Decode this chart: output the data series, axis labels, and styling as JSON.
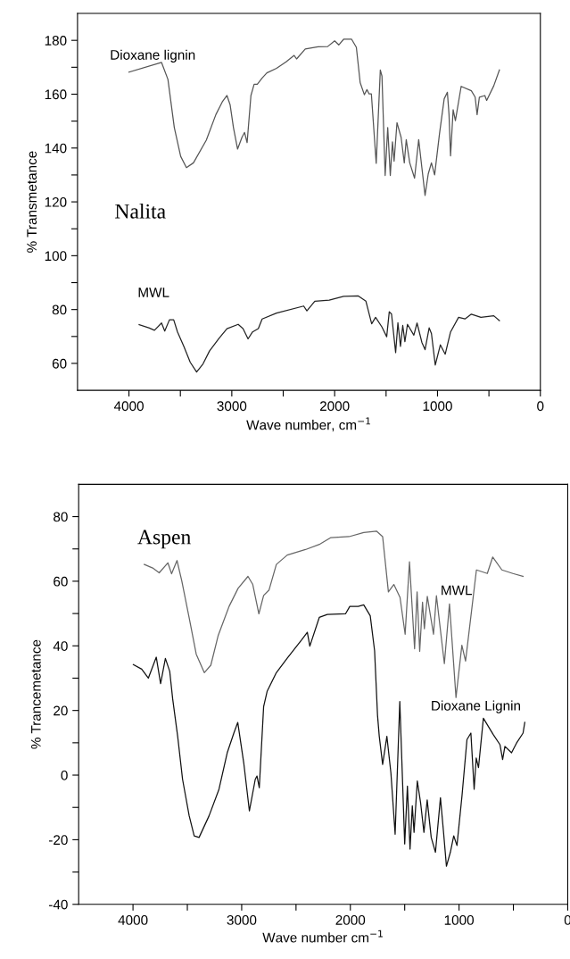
{
  "chart_data": [
    {
      "type": "line",
      "xlabel": "Wave number, cm$^{−1}$",
      "ylabel": "% Transmetance",
      "xlim": [
        4500,
        0
      ],
      "ylim": [
        50,
        190
      ],
      "xticks": [
        4000,
        {
          "value": 3500,
          "label": null
        },
        3000,
        {
          "value": 2500,
          "label": null
        },
        2000,
        {
          "value": 1500,
          "label": null
        },
        1000,
        {
          "value": 500,
          "label": null
        },
        0
      ],
      "yticks": [
        60,
        {
          "value": 70,
          "label": null
        },
        80,
        {
          "value": 90,
          "label": null
        },
        100,
        {
          "value": 110,
          "label": null
        },
        120,
        {
          "value": 130,
          "label": null
        },
        140,
        {
          "value": 150,
          "label": null
        },
        160,
        {
          "value": 170,
          "label": null
        },
        180
      ],
      "grid": false,
      "legend": false,
      "marker": "none",
      "line_style": "solid",
      "series": [
        {
          "name": "Dioxane lignin",
          "color": "#555555",
          "x": [
            4000,
            3683,
            3621,
            3559,
            3497,
            3441,
            3373,
            3248,
            3155,
            3093,
            3047,
            3016,
            2984,
            2944,
            2901,
            2876,
            2851,
            2814,
            2783,
            2752,
            2705,
            2659,
            2565,
            2472,
            2394,
            2370,
            2286,
            2161,
            2068,
            2000,
            1960,
            1913,
            1835,
            1789,
            1752,
            1711,
            1686,
            1665,
            1643,
            1596,
            1556,
            1540,
            1509,
            1484,
            1459,
            1438,
            1422,
            1394,
            1354,
            1323,
            1304,
            1270,
            1223,
            1183,
            1152,
            1121,
            1090,
            1059,
            1028,
            981,
            935,
            904,
            888,
            873,
            848,
            826,
            770,
            671,
            634,
            615,
            593,
            540,
            522,
            453,
            398
          ],
          "values": [
            168.2,
            171.8,
            165.5,
            147.6,
            136.9,
            132.7,
            134.5,
            142.9,
            152.4,
            157.1,
            159.5,
            156,
            147.6,
            139.6,
            144,
            145.8,
            142,
            159.5,
            163.7,
            163.7,
            166,
            167.9,
            169.6,
            172,
            174.4,
            173.1,
            176.8,
            177.6,
            177.7,
            179.8,
            178.3,
            180.4,
            180.4,
            177.4,
            164.3,
            159.8,
            161.7,
            160.1,
            160.1,
            134.3,
            169,
            166.7,
            129.8,
            147.6,
            129.8,
            142.3,
            135.1,
            149.4,
            144,
            134.5,
            143.1,
            134.5,
            128.8,
            143.1,
            132.7,
            122.4,
            130.4,
            134.5,
            130,
            145.2,
            158.3,
            160.7,
            152.4,
            137.1,
            154.2,
            150.2,
            162.9,
            161.3,
            158.9,
            152.4,
            158.9,
            159.5,
            157.7,
            163.1,
            169
          ]
        },
        {
          "name": "MWL",
          "color": "#222222",
          "x": [
            3901,
            3807,
            3752,
            3683,
            3652,
            3606,
            3565,
            3528,
            3466,
            3404,
            3342,
            3280,
            3217,
            3124,
            3047,
            2938,
            2891,
            2842,
            2798,
            2742,
            2705,
            2565,
            2301,
            2270,
            2193,
            2053,
            1913,
            1773,
            1696,
            1640,
            1602,
            1540,
            1494,
            1469,
            1447,
            1407,
            1385,
            1360,
            1338,
            1317,
            1292,
            1230,
            1199,
            1152,
            1121,
            1081,
            1059,
            1022,
            972,
            925,
            873,
            795,
            733,
            671,
            578,
            453,
            398
          ],
          "values": [
            74.4,
            73.2,
            72.3,
            75,
            72,
            76.2,
            76.2,
            71.7,
            66.3,
            60.4,
            56.8,
            59.8,
            64.6,
            69.3,
            72.9,
            74.5,
            72.9,
            69.1,
            71.7,
            72.9,
            76.5,
            78.7,
            81.3,
            79.5,
            83.1,
            83.5,
            84.9,
            85.1,
            83.1,
            74.7,
            77.1,
            73.5,
            69.9,
            79.2,
            78.3,
            64,
            75.1,
            66.3,
            74.1,
            68.1,
            74.5,
            70.5,
            75,
            67.8,
            65.1,
            73.2,
            71.1,
            59.4,
            66.9,
            63.4,
            71.7,
            77.1,
            76.5,
            78.3,
            77.1,
            77.7,
            75.9
          ]
        }
      ],
      "annotations": [
        "Nalita"
      ]
    },
    {
      "type": "line",
      "xlabel": "Wave number cm$^{−1}$",
      "ylabel": "% Trancemetance",
      "xlim": [
        4500,
        0
      ],
      "ylim": [
        -40,
        90
      ],
      "xticks": [
        4000,
        {
          "value": 3500,
          "label": null
        },
        3000,
        {
          "value": 2500,
          "label": null
        },
        2000,
        {
          "value": 1500,
          "label": null
        },
        1000,
        {
          "value": 500,
          "label": null
        },
        0
      ],
      "yticks": [
        -40,
        {
          "value": -30,
          "label": null
        },
        -20,
        {
          "value": -10,
          "label": null
        },
        0,
        {
          "value": 10,
          "label": null
        },
        20,
        {
          "value": 30,
          "label": null
        },
        40,
        {
          "value": 50,
          "label": null
        },
        60,
        {
          "value": 70,
          "label": null
        },
        80
      ],
      "grid": false,
      "legend": false,
      "marker": "none",
      "line_style": "solid",
      "series": [
        {
          "name": "MWL",
          "color": "#666666",
          "x": [
            3896,
            3819,
            3759,
            3679,
            3645,
            3595,
            3551,
            3484,
            3418,
            3344,
            3284,
            3217,
            3116,
            3033,
            2942,
            2898,
            2842,
            2798,
            2748,
            2681,
            2581,
            2413,
            2279,
            2179,
            2012,
            1877,
            1760,
            1703,
            1650,
            1600,
            1543,
            1496,
            1456,
            1409,
            1386,
            1362,
            1336,
            1319,
            1292,
            1235,
            1208,
            1135,
            1088,
            1028,
            974,
            940,
            840,
            740,
            690,
            606,
            505,
            411
          ],
          "values": [
            65.2,
            64.1,
            62.6,
            65.7,
            62.3,
            66.4,
            60.1,
            48.8,
            37.4,
            31.7,
            34,
            43.1,
            52.2,
            57.8,
            61.5,
            59,
            49.9,
            55.6,
            57.3,
            65.2,
            68.1,
            69.8,
            71.5,
            73.5,
            73.8,
            75.1,
            75.5,
            73.8,
            56.7,
            59,
            55,
            43.6,
            66,
            39.1,
            56.7,
            38.3,
            53.5,
            45.3,
            55.3,
            43.6,
            55.5,
            34.5,
            53,
            24,
            40.2,
            35.3,
            63.5,
            62.4,
            67.5,
            63.5,
            62.4,
            61.5
          ]
        },
        {
          "name": "Dioxane Lignin",
          "color": "#111111",
          "x": [
            3997,
            3920,
            3859,
            3786,
            3746,
            3702,
            3662,
            3635,
            3589,
            3544,
            3483,
            3437,
            3392,
            3300,
            3209,
            3133,
            3072,
            3036,
            2981,
            2929,
            2875,
            2859,
            2838,
            2798,
            2765,
            2681,
            2581,
            2447,
            2396,
            2373,
            2286,
            2212,
            2045,
            2005,
            1928,
            1877,
            1817,
            1777,
            1750,
            1734,
            1703,
            1664,
            1627,
            1588,
            1545,
            1500,
            1475,
            1451,
            1430,
            1414,
            1384,
            1354,
            1323,
            1293,
            1256,
            1217,
            1171,
            1141,
            1116,
            1080,
            1049,
            1019,
            973,
            927,
            891,
            861,
            842,
            821,
            776,
            684,
            623,
            599,
            578,
            517,
            471,
            411,
            395
          ],
          "values": [
            34.2,
            32.8,
            30,
            36.5,
            28.3,
            36.1,
            32.1,
            23.6,
            12,
            -1.3,
            -12.6,
            -18.8,
            -19.3,
            -12.6,
            -4.4,
            6.9,
            13,
            16.3,
            3.8,
            -11.1,
            -1.3,
            -0.3,
            -3.9,
            21.2,
            26,
            31.7,
            36.2,
            41.9,
            44.2,
            39.9,
            48.8,
            49.7,
            49.9,
            52.2,
            52.2,
            52.7,
            49.3,
            38.5,
            18.5,
            12,
            3.3,
            12,
            0.7,
            -18.3,
            22.8,
            -21.3,
            -3.4,
            -22.9,
            -9.5,
            -17.7,
            -1.8,
            -8.5,
            -17.7,
            -7.7,
            -19.3,
            -23.9,
            -7,
            -18.3,
            -28.2,
            -23.9,
            -18.8,
            -21.8,
            -6.5,
            11,
            13,
            -4.4,
            5.3,
            2.3,
            17.6,
            12.5,
            9.4,
            4.8,
            8.9,
            6.9,
            9.9,
            13,
            16.3
          ]
        }
      ],
      "annotations": [
        "Aspen"
      ]
    }
  ]
}
